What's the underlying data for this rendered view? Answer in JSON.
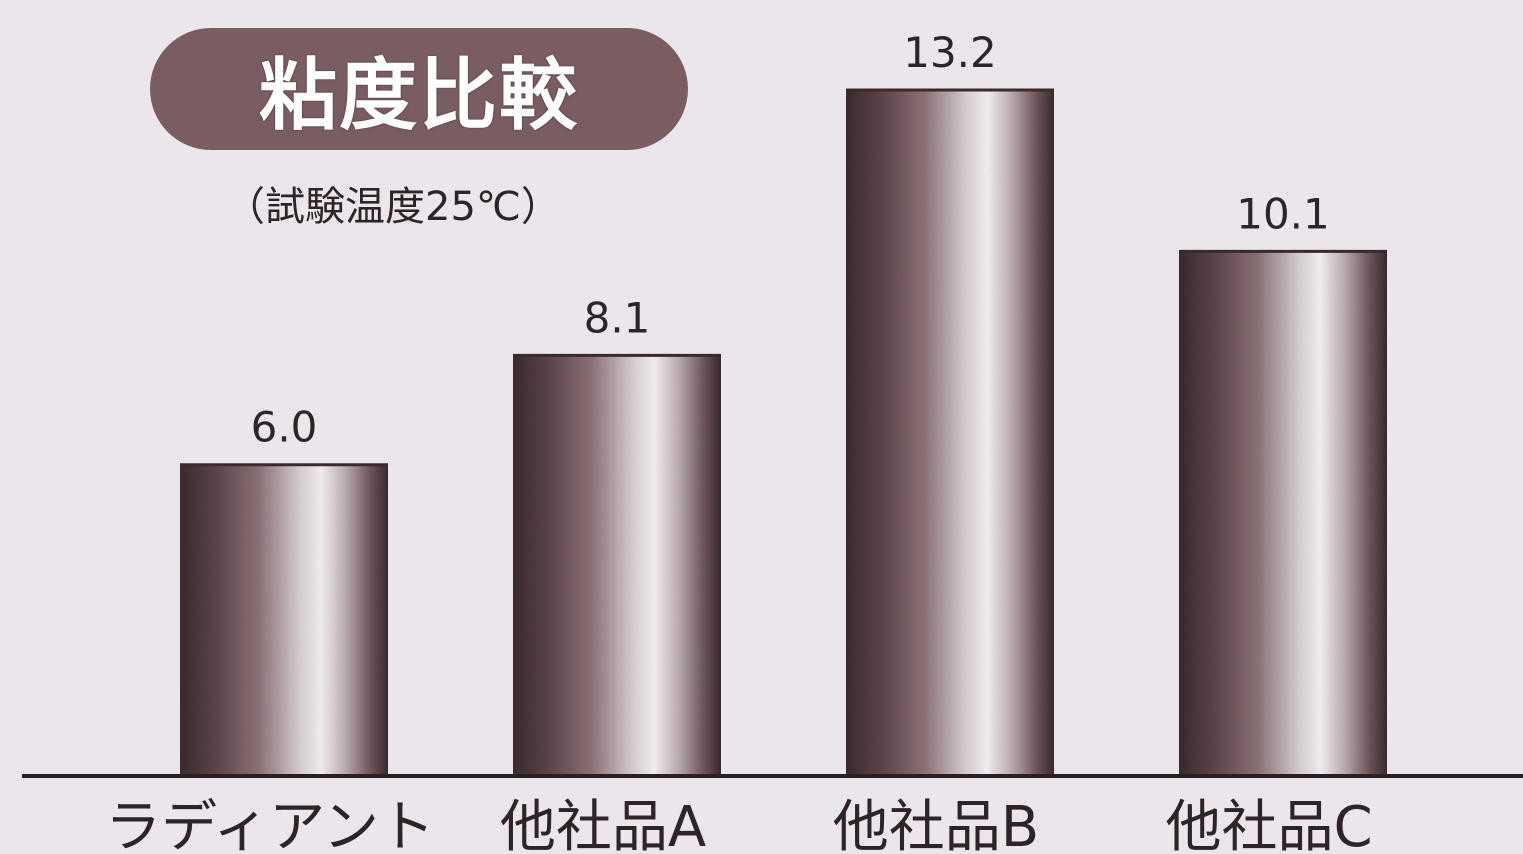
{
  "chart_data": {
    "type": "bar",
    "title": "粘度比較",
    "subtitle": "（試験温度25℃）",
    "categories": [
      "ラディアント",
      "他社品A",
      "他社品B",
      "他社品C"
    ],
    "values": [
      6.0,
      8.1,
      13.2,
      10.1
    ],
    "value_labels": [
      "6.0",
      "8.1",
      "13.2",
      "10.1"
    ],
    "xlabel": "",
    "ylabel": "",
    "ylim": [
      0,
      13.2
    ],
    "grid": false,
    "legend": "none",
    "bar_style": "cylindrical gradient",
    "colors": {
      "background": "#ebe6ec",
      "bar_dark": "#3a2a2e",
      "bar_mid": "#7e646a",
      "bar_light": "#f3eff2",
      "title_pill": "#7a5d62",
      "text": "#2e2326",
      "axis": "#2a2024"
    }
  }
}
